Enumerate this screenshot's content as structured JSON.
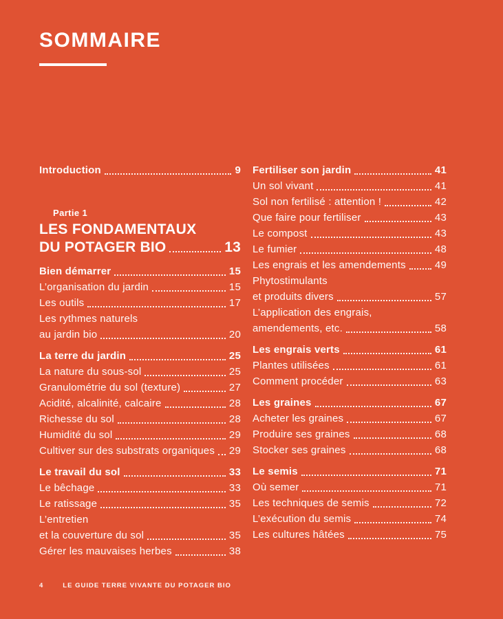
{
  "page": {
    "title": "SOMMAIRE",
    "colors": {
      "background": "#E05233",
      "text": "#FFFFFF"
    },
    "footer": {
      "page_number": "4",
      "book_title": "LE GUIDE TERRE VIVANTE DU POTAGER BIO"
    }
  },
  "toc": {
    "introduction": {
      "label": "Introduction",
      "page": "9"
    },
    "part": {
      "kicker": "Partie 1",
      "title_lines": [
        "LES FONDAMENTAUX",
        "DU POTAGER BIO"
      ],
      "page": "13"
    },
    "columns": {
      "left": [
        {
          "heading": {
            "label": "Bien démarrer",
            "page": "15"
          },
          "items": [
            {
              "lines": [
                "L’organisation du jardin"
              ],
              "page": "15"
            },
            {
              "lines": [
                "Les outils"
              ],
              "page": "17"
            },
            {
              "lines": [
                "Les rythmes naturels",
                "au jardin bio"
              ],
              "page": "20"
            }
          ]
        },
        {
          "heading": {
            "label": "La terre du jardin",
            "page": "25"
          },
          "items": [
            {
              "lines": [
                "La nature du sous-sol"
              ],
              "page": "25"
            },
            {
              "lines": [
                "Granulométrie du sol (texture)"
              ],
              "page": "27"
            },
            {
              "lines": [
                "Acidité, alcalinité, calcaire"
              ],
              "page": "28"
            },
            {
              "lines": [
                "Richesse du sol"
              ],
              "page": "28"
            },
            {
              "lines": [
                "Humidité du sol"
              ],
              "page": "29"
            },
            {
              "lines": [
                "Cultiver sur des substrats organiques"
              ],
              "page": "29"
            }
          ]
        },
        {
          "heading": {
            "label": "Le travail du sol",
            "page": "33"
          },
          "items": [
            {
              "lines": [
                "Le bêchage"
              ],
              "page": "33"
            },
            {
              "lines": [
                "Le ratissage"
              ],
              "page": "35"
            },
            {
              "lines": [
                "L’entretien",
                "et la couverture du sol"
              ],
              "page": "35"
            },
            {
              "lines": [
                "Gérer les mauvaises herbes"
              ],
              "page": "38"
            }
          ]
        }
      ],
      "right": [
        {
          "heading": {
            "label": "Fertiliser son jardin",
            "page": "41"
          },
          "items": [
            {
              "lines": [
                "Un sol vivant"
              ],
              "page": "41"
            },
            {
              "lines": [
                "Sol non fertilisé : attention !"
              ],
              "page": "42"
            },
            {
              "lines": [
                "Que faire pour fertiliser"
              ],
              "page": "43"
            },
            {
              "lines": [
                "Le compost"
              ],
              "page": "43"
            },
            {
              "lines": [
                "Le fumier"
              ],
              "page": "48"
            },
            {
              "lines": [
                "Les engrais et les amendements"
              ],
              "page": "49"
            },
            {
              "lines": [
                "Phytostimulants",
                "et produits divers"
              ],
              "page": "57"
            },
            {
              "lines": [
                "L’application des engrais,",
                "amendements, etc."
              ],
              "page": "58"
            }
          ]
        },
        {
          "heading": {
            "label": "Les engrais verts",
            "page": "61"
          },
          "items": [
            {
              "lines": [
                "Plantes utilisées"
              ],
              "page": "61"
            },
            {
              "lines": [
                "Comment procéder"
              ],
              "page": "63"
            }
          ]
        },
        {
          "heading": {
            "label": "Les graines",
            "page": "67"
          },
          "items": [
            {
              "lines": [
                "Acheter les graines"
              ],
              "page": "67"
            },
            {
              "lines": [
                "Produire ses graines"
              ],
              "page": "68"
            },
            {
              "lines": [
                "Stocker ses graines"
              ],
              "page": "68"
            }
          ]
        },
        {
          "heading": {
            "label": "Le semis",
            "page": "71"
          },
          "items": [
            {
              "lines": [
                "Où semer"
              ],
              "page": "71"
            },
            {
              "lines": [
                "Les techniques de semis"
              ],
              "page": "72"
            },
            {
              "lines": [
                "L’exécution du semis"
              ],
              "page": "74"
            },
            {
              "lines": [
                "Les cultures hâtées"
              ],
              "page": "75"
            }
          ]
        }
      ]
    }
  }
}
